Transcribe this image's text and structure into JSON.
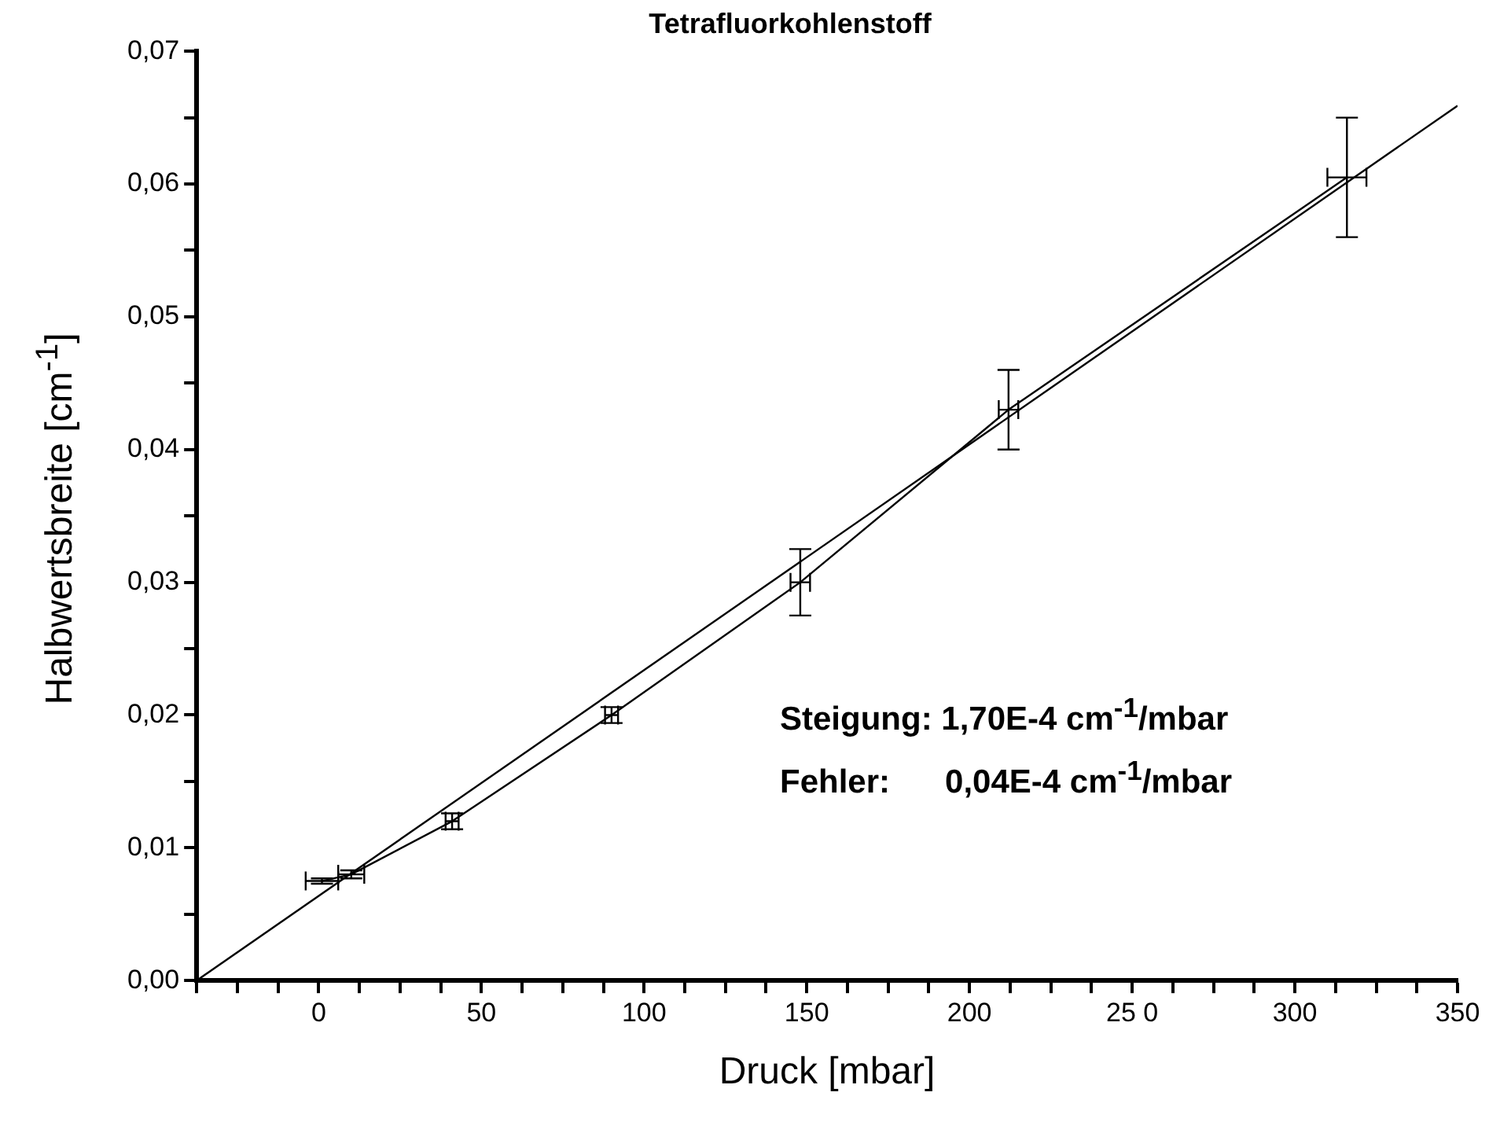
{
  "chart_data": {
    "type": "line",
    "title": "Tetrafluorkohlenstoff",
    "xlabel": "Druck [mbar]",
    "ylabel": "Halbwertsbreite [cm$^{-1}$]",
    "annotations": [
      "Steigung: 1,70E-4 cm$^{-1}$/mbar",
      "Fehler:      0,04E-4 cm$^{-1}$/mbar"
    ],
    "series": [
      {
        "color": "#000000",
        "x": [
          1,
          10,
          41,
          90,
          148,
          212,
          316
        ],
        "values": [
          0.0075,
          0.008,
          0.012,
          0.02,
          0.03,
          0.043,
          0.0605
        ],
        "errors": [
          0.0002,
          0.0003,
          0.0006,
          0.0006,
          0.0025,
          0.003,
          0.0045
        ],
        "xerrors": [
          5,
          4,
          2,
          2,
          3,
          3,
          6
        ]
      },
      {
        "color": "#000000",
        "x": [
          -37.5,
          350
        ],
        "values": [
          0,
          0.0659
        ]
      }
    ],
    "xlim": [
      -37.5,
      350
    ],
    "xticks": [
      {
        "value": -37.5,
        "label": null
      },
      {
        "value": -25,
        "label": null
      },
      {
        "value": -12.5,
        "label": null
      },
      0,
      {
        "value": 12.5,
        "label": null
      },
      {
        "value": 25,
        "label": null
      },
      {
        "value": 37.5,
        "label": null
      },
      50,
      {
        "value": 62.5,
        "label": null
      },
      {
        "value": 75,
        "label": null
      },
      {
        "value": 87.5,
        "label": null
      },
      100,
      {
        "value": 112.5,
        "label": null
      },
      {
        "value": 125,
        "label": null
      },
      {
        "value": 137.5,
        "label": null
      },
      150,
      {
        "value": 162.5,
        "label": null
      },
      {
        "value": 175,
        "label": null
      },
      {
        "value": 187.5,
        "label": null
      },
      200,
      {
        "value": 212.5,
        "label": null
      },
      {
        "value": 225,
        "label": null
      },
      {
        "value": 237.5,
        "label": null
      },
      {
        "value": 250,
        "label": "25 0"
      },
      {
        "value": 262.5,
        "label": null
      },
      {
        "value": 275,
        "label": null
      },
      {
        "value": 287.5,
        "label": null
      },
      300,
      {
        "value": 312.5,
        "label": null
      },
      {
        "value": 325,
        "label": null
      },
      {
        "value": 337.5,
        "label": null
      },
      350
    ],
    "ylim": [
      0,
      0.07
    ],
    "yticks": [
      {
        "value": 0,
        "label": "0,00"
      },
      {
        "value": 0.005,
        "label": null
      },
      {
        "value": 0.01,
        "label": "0,01"
      },
      {
        "value": 0.015,
        "label": null
      },
      {
        "value": 0.02,
        "label": "0,02"
      },
      {
        "value": 0.025,
        "label": null
      },
      {
        "value": 0.03,
        "label": "0,03"
      },
      {
        "value": 0.035,
        "label": null
      },
      {
        "value": 0.04,
        "label": "0,04"
      },
      {
        "value": 0.045,
        "label": null
      },
      {
        "value": 0.05,
        "label": "0,05"
      },
      {
        "value": 0.055,
        "label": null
      },
      {
        "value": 0.06,
        "label": "0,06"
      },
      {
        "value": 0.065,
        "label": null
      },
      {
        "value": 0.07,
        "label": "0,07"
      }
    ],
    "grid": false,
    "legend": false,
    "line_style": "solid"
  }
}
